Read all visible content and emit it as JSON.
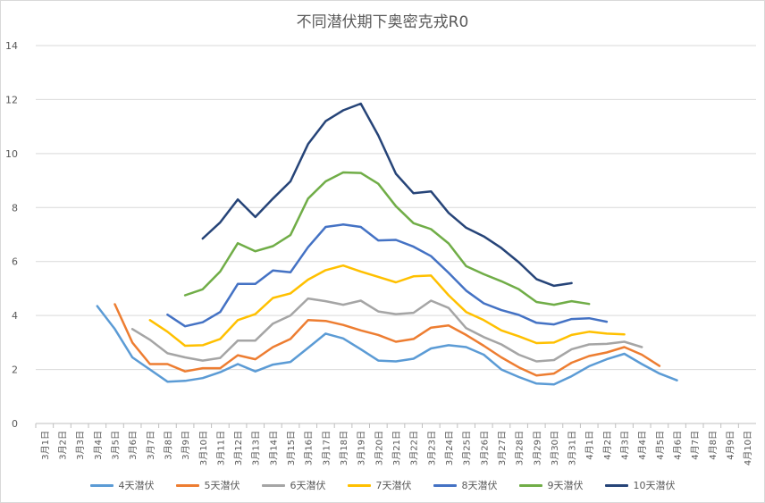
{
  "chart_data": {
    "type": "line",
    "title": "不同潜伏期下奥密克戎R0",
    "xlabel": "",
    "ylabel": "",
    "ylim": [
      0,
      14
    ],
    "yticks": [
      0,
      2,
      4,
      6,
      8,
      10,
      12,
      14
    ],
    "grid": true,
    "legend_position": "bottom",
    "categories": [
      "3月1日",
      "3月2日",
      "3月3日",
      "3月4日",
      "3月5日",
      "3月6日",
      "3月7日",
      "3月8日",
      "3月9日",
      "3月10日",
      "3月11日",
      "3月12日",
      "3月13日",
      "3月14日",
      "3月15日",
      "3月16日",
      "3月17日",
      "3月18日",
      "3月19日",
      "3月20日",
      "3月21日",
      "3月22日",
      "3月23日",
      "3月24日",
      "3月25日",
      "3月26日",
      "3月27日",
      "3月28日",
      "3月29日",
      "3月30日",
      "3月31日",
      "4月1日",
      "4月2日",
      "4月3日",
      "4月4日",
      "4月5日",
      "4月6日",
      "4月7日",
      "4月8日",
      "4月9日",
      "4月10日"
    ],
    "series": [
      {
        "name": "4天潜伏",
        "color": "#5b9bd5",
        "values": [
          null,
          null,
          null,
          4.35,
          3.5,
          2.45,
          2.0,
          1.55,
          1.58,
          1.68,
          1.9,
          2.2,
          1.93,
          2.18,
          2.28,
          2.8,
          3.33,
          3.15,
          2.75,
          2.33,
          2.3,
          2.4,
          2.78,
          2.9,
          2.83,
          2.55,
          2.0,
          1.72,
          1.48,
          1.45,
          1.75,
          2.12,
          2.38,
          2.58,
          2.2,
          1.85,
          1.6,
          null,
          null,
          null,
          null
        ]
      },
      {
        "name": "5天潜伏",
        "color": "#ed7d31",
        "values": [
          null,
          null,
          null,
          null,
          4.42,
          3.0,
          2.2,
          2.2,
          1.93,
          2.05,
          2.05,
          2.53,
          2.38,
          2.83,
          3.13,
          3.83,
          3.8,
          3.65,
          3.45,
          3.28,
          3.03,
          3.13,
          3.55,
          3.63,
          3.28,
          2.88,
          2.45,
          2.08,
          1.78,
          1.85,
          2.25,
          2.5,
          2.63,
          2.83,
          2.55,
          2.13,
          null,
          null,
          null,
          null,
          null
        ]
      },
      {
        "name": "6天潜伏",
        "color": "#a5a5a5",
        "values": [
          null,
          null,
          null,
          null,
          null,
          3.5,
          3.1,
          2.6,
          2.45,
          2.33,
          2.43,
          3.07,
          3.07,
          3.7,
          4.0,
          4.63,
          4.53,
          4.4,
          4.55,
          4.15,
          4.05,
          4.1,
          4.55,
          4.28,
          3.53,
          3.2,
          2.93,
          2.55,
          2.3,
          2.35,
          2.75,
          2.93,
          2.95,
          3.03,
          2.83,
          null,
          null,
          null,
          null,
          null,
          null
        ]
      },
      {
        "name": "7天潜伏",
        "color": "#ffc000",
        "values": [
          null,
          null,
          null,
          null,
          null,
          null,
          3.83,
          3.4,
          2.88,
          2.9,
          3.13,
          3.83,
          4.05,
          4.65,
          4.82,
          5.33,
          5.68,
          5.85,
          5.63,
          5.43,
          5.23,
          5.45,
          5.48,
          4.75,
          4.13,
          3.83,
          3.45,
          3.23,
          2.98,
          3.0,
          3.28,
          3.4,
          3.33,
          3.3,
          null,
          null,
          null,
          null,
          null,
          null,
          null
        ]
      },
      {
        "name": "8天潜伏",
        "color": "#4472c4",
        "values": [
          null,
          null,
          null,
          null,
          null,
          null,
          null,
          4.03,
          3.6,
          3.75,
          4.13,
          5.17,
          5.17,
          5.67,
          5.6,
          6.53,
          7.28,
          7.37,
          7.28,
          6.78,
          6.8,
          6.55,
          6.2,
          5.58,
          4.92,
          4.45,
          4.2,
          4.02,
          3.73,
          3.67,
          3.87,
          3.9,
          3.77,
          null,
          null,
          null,
          null,
          null,
          null,
          null,
          null
        ]
      },
      {
        "name": "9天潜伏",
        "color": "#70ad47",
        "values": [
          null,
          null,
          null,
          null,
          null,
          null,
          null,
          null,
          4.75,
          4.97,
          5.63,
          6.68,
          6.38,
          6.57,
          6.98,
          8.33,
          8.97,
          9.3,
          9.28,
          8.88,
          8.05,
          7.42,
          7.2,
          6.67,
          5.83,
          5.53,
          5.27,
          4.97,
          4.5,
          4.4,
          4.53,
          4.43,
          null,
          null,
          null,
          null,
          null,
          null,
          null,
          null,
          null
        ]
      },
      {
        "name": "10天潜伏",
        "color": "#264478",
        "values": [
          null,
          null,
          null,
          null,
          null,
          null,
          null,
          null,
          null,
          6.85,
          7.45,
          8.3,
          7.65,
          8.33,
          8.97,
          10.35,
          11.2,
          11.6,
          11.85,
          10.67,
          9.25,
          8.53,
          8.6,
          7.8,
          7.25,
          6.93,
          6.5,
          5.97,
          5.35,
          5.1,
          5.2,
          null,
          null,
          null,
          null,
          null,
          null,
          null,
          null,
          null,
          null
        ]
      }
    ]
  }
}
